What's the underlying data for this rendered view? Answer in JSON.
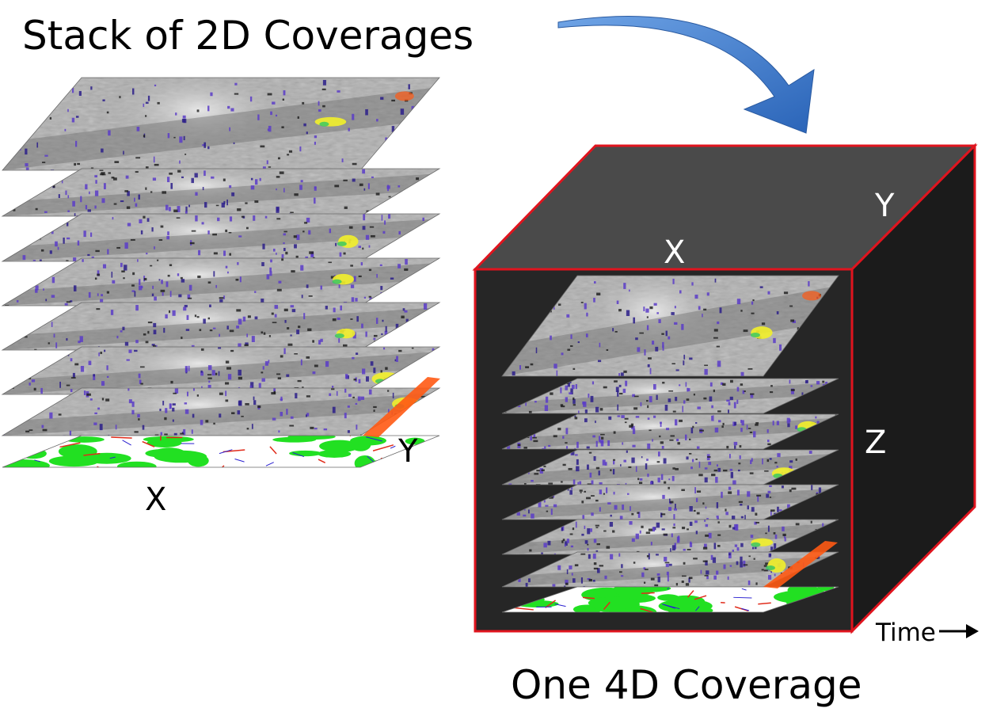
{
  "left_panel": {
    "title": "Stack of 2D Coverages",
    "axis_x": "X",
    "axis_y": "Y",
    "layer_count": 8
  },
  "right_panel": {
    "title": "One 4D Coverage",
    "axis_x": "X",
    "axis_y": "Y",
    "axis_z": "Z",
    "axis_time": "Time",
    "layer_count": 8
  },
  "colors": {
    "cube_top": "#4a4a4a",
    "cube_front": "#262626",
    "cube_side": "#1b1b1b",
    "cube_edge": "#e0141e",
    "arrow": "#3a78c8",
    "map_green": "#22e022",
    "map_red": "#e02b1a",
    "map_blue": "#2a20d0",
    "map_purple": "#5a3cc8",
    "map_yellow": "#f2f02a",
    "map_orange": "#ff5a14",
    "layer_gray": "#b0b0b0"
  },
  "icons": {
    "arrow": "curved-arrow-icon",
    "time_arrow": "right-arrow-icon"
  }
}
